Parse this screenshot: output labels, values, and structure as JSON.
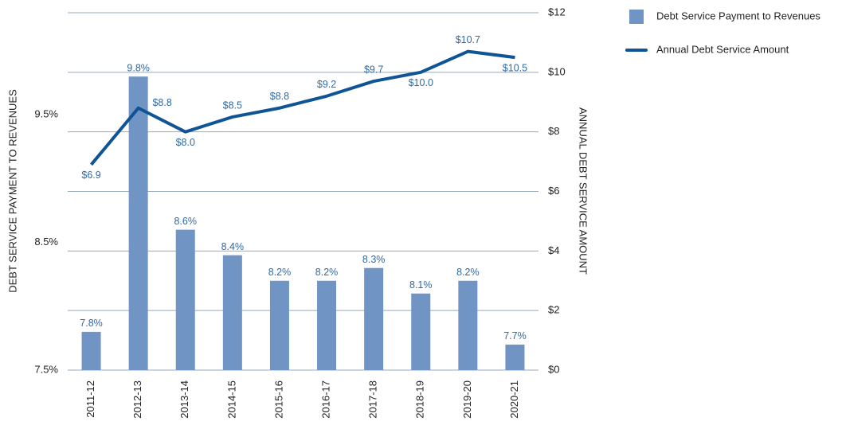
{
  "chart_data": {
    "type": "combo",
    "categories": [
      "2011-12",
      "2012-13",
      "2013-14",
      "2014-15",
      "2015-16",
      "2016-17",
      "2017-18",
      "2018-19",
      "2019-20",
      "2020-21"
    ],
    "y_label": "DEBT SERVICE PAYMENT TO REVENUES",
    "y2_label": "ANNUAL DEBT SERVICE AMOUNT",
    "ylim": [
      7.5,
      10.3
    ],
    "yticks": [
      {
        "value": 7.5,
        "label": "7.5%"
      },
      {
        "value": 8.5,
        "label": "8.5%"
      },
      {
        "value": 9.5,
        "label": "9.5%"
      }
    ],
    "y2lim": [
      0,
      12
    ],
    "y2ticks": [
      {
        "value": 0,
        "label": "$0"
      },
      {
        "value": 2,
        "label": "$2"
      },
      {
        "value": 4,
        "label": "$4"
      },
      {
        "value": 6,
        "label": "$6"
      },
      {
        "value": 8,
        "label": "$8"
      },
      {
        "value": 10,
        "label": "$10"
      },
      {
        "value": 12,
        "label": "$12"
      }
    ],
    "grid": true,
    "legend": "top-right",
    "series": [
      {
        "name": "Debt Service Payment to Revenues",
        "type": "bar",
        "color": "#7094c4",
        "values": [
          7.8,
          9.8,
          8.6,
          8.4,
          8.2,
          8.2,
          8.3,
          8.1,
          8.2,
          7.7
        ],
        "value_labels": [
          "7.8%",
          "9.8%",
          "8.6%",
          "8.4%",
          "8.2%",
          "8.2%",
          "8.3%",
          "8.1%",
          "8.2%",
          "7.7%"
        ]
      },
      {
        "name": "Annual Debt Service Amount",
        "type": "line",
        "axis": "y2",
        "color": "#0f5494",
        "values": [
          6.9,
          8.8,
          8.0,
          8.5,
          8.8,
          9.2,
          9.7,
          10.0,
          10.7,
          10.5
        ],
        "value_labels": [
          "$6.9",
          "$8.8",
          "$8.0",
          "$8.5",
          "$8.8",
          "$9.2",
          "$9.7",
          "$10.0",
          "$10.7",
          "$10.5"
        ]
      }
    ]
  }
}
